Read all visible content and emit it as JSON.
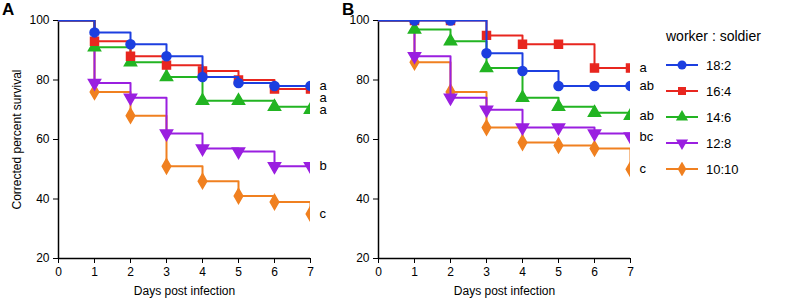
{
  "chart_data": [
    {
      "type": "line",
      "title": "A",
      "line_style": "step",
      "xlabel": "Days post infection",
      "ylabel": "Corrected percent survival",
      "x": [
        0,
        1,
        2,
        3,
        4,
        5,
        6,
        7
      ],
      "xlim": [
        0,
        7
      ],
      "xticks": [
        0,
        1,
        2,
        3,
        4,
        5,
        6,
        7
      ],
      "ylim": [
        20,
        100
      ],
      "yticks": [
        20,
        40,
        60,
        80,
        100
      ],
      "series": [
        {
          "name": "18:2",
          "color": "#1c3fe0",
          "marker": "circle",
          "values": [
            100,
            96,
            92,
            88,
            81,
            79,
            78,
            78
          ],
          "annotation": "a"
        },
        {
          "name": "16:4",
          "color": "#e8261f",
          "marker": "square",
          "values": [
            100,
            93,
            88,
            85,
            83,
            80,
            77,
            77
          ],
          "annotation": "a"
        },
        {
          "name": "14:6",
          "color": "#22b422",
          "marker": "triangle",
          "values": [
            100,
            91,
            86,
            81,
            73,
            73,
            71,
            70
          ],
          "annotation": "a"
        },
        {
          "name": "12:8",
          "color": "#9a1fe0",
          "marker": "triangle-down",
          "values": [
            100,
            79,
            74,
            62,
            57,
            56,
            51,
            51
          ],
          "annotation": "b"
        },
        {
          "name": "10:10",
          "color": "#f08020",
          "marker": "diamond",
          "values": [
            100,
            76,
            68,
            51,
            46,
            41,
            39,
            35
          ],
          "annotation": "c"
        }
      ]
    },
    {
      "type": "line",
      "title": "B",
      "line_style": "step",
      "xlabel": "Days post infection",
      "x": [
        0,
        1,
        2,
        3,
        4,
        5,
        6,
        7
      ],
      "xlim": [
        0,
        7
      ],
      "xticks": [
        0,
        1,
        2,
        3,
        4,
        5,
        6,
        7
      ],
      "ylim": [
        20,
        100
      ],
      "yticks": [
        20,
        40,
        60,
        80,
        100
      ],
      "legend": "right",
      "legend_title": "worker : soldier",
      "series": [
        {
          "name": "18:2",
          "color": "#1c3fe0",
          "marker": "circle",
          "values": [
            100,
            100,
            100,
            89,
            83,
            78,
            78,
            78
          ],
          "annotation": "ab"
        },
        {
          "name": "16:4",
          "color": "#e8261f",
          "marker": "square",
          "values": [
            100,
            100,
            100,
            95,
            92,
            92,
            84,
            84
          ],
          "annotation": "a"
        },
        {
          "name": "14:6",
          "color": "#22b422",
          "marker": "triangle",
          "values": [
            100,
            97,
            93,
            84,
            74,
            71,
            69,
            68
          ],
          "annotation": "ab"
        },
        {
          "name": "12:8",
          "color": "#9a1fe0",
          "marker": "triangle-down",
          "values": [
            100,
            88,
            74,
            70,
            64,
            64,
            62,
            61
          ],
          "annotation": "bc"
        },
        {
          "name": "10:10",
          "color": "#f08020",
          "marker": "diamond",
          "values": [
            100,
            86,
            76,
            64,
            59,
            58,
            57,
            50
          ],
          "annotation": "c"
        }
      ]
    }
  ]
}
